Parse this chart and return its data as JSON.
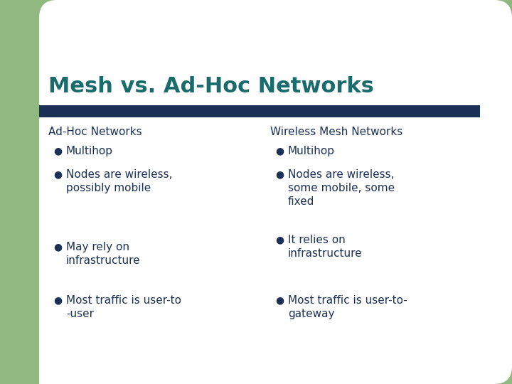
{
  "title": "Mesh vs. Ad-Hoc Networks",
  "title_color": "#1a6b6b",
  "title_fontsize": 22,
  "bg_color": "#ffffff",
  "green_accent_color": "#92b882",
  "header_bar_color": "#1a3055",
  "left_col_header": "Ad-Hoc Networks",
  "right_col_header": "Wireless Mesh Networks",
  "col_header_color": "#1a3055",
  "col_header_fontsize": 11,
  "bullet_color": "#1a3055",
  "bullet_fontsize": 11,
  "left_bullets": [
    "Multihop",
    "Nodes are wireless,\npossibly mobile",
    "May rely on\ninfrastructure",
    "Most traffic is user-to\n-user"
  ],
  "right_bullets": [
    "Multihop",
    "Nodes are wireless,\nsome mobile, some\nfixed",
    "It relies on\ninfrastructure",
    "Most traffic is user-to-\ngateway"
  ]
}
